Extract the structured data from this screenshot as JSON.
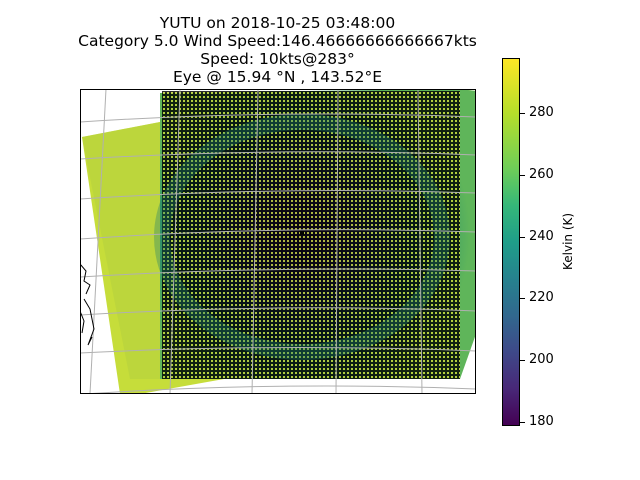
{
  "figure": {
    "title_lines": [
      "YUTU on 2018-10-25 03:48:00",
      "Category 5.0 Wind Speed:146.46666666666667kts",
      "Speed: 10kts@283°",
      "Eye @ 15.94 °N , 143.52°E"
    ]
  },
  "colorbar": {
    "label": "Kelvin (K)",
    "ticks": [
      "280",
      "260",
      "240",
      "220",
      "200",
      "180"
    ],
    "range_min": 178,
    "range_max": 298,
    "colormap": "viridis"
  },
  "map": {
    "storm_name": "YUTU",
    "eye_lat": 15.94,
    "eye_lon": 143.52,
    "colors": {
      "warm": "#c8df38",
      "mid": "#2a8f6e",
      "cold": "#3b1f6b",
      "grid_marks": "#000000",
      "graticule": "#b0b0b0"
    }
  }
}
